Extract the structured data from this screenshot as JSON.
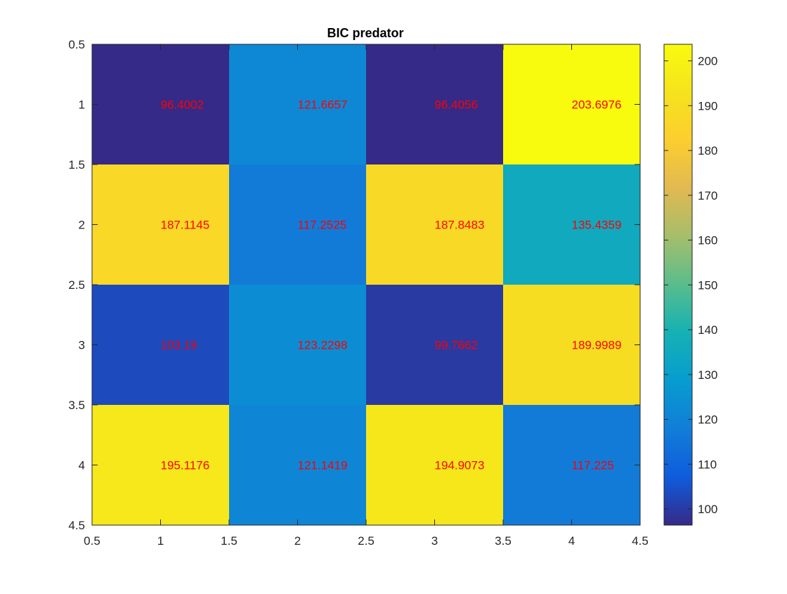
{
  "chart_data": {
    "type": "heatmap",
    "title": "BIC predator",
    "xlabel": "",
    "ylabel": "",
    "xlim": [
      0.5,
      4.5
    ],
    "ylim": [
      0.5,
      4.5
    ],
    "y_reversed": true,
    "x_ticks": [
      "0.5",
      "1",
      "1.5",
      "2",
      "2.5",
      "3",
      "3.5",
      "4",
      "4.5"
    ],
    "y_ticks": [
      "0.5",
      "1",
      "1.5",
      "2",
      "2.5",
      "3",
      "3.5",
      "4",
      "4.5"
    ],
    "rows": [
      1,
      2,
      3,
      4
    ],
    "cols": [
      1,
      2,
      3,
      4
    ],
    "values": [
      [
        96.4002,
        121.6657,
        96.4056,
        203.6976
      ],
      [
        187.1145,
        117.2525,
        187.8483,
        135.4359
      ],
      [
        103.19,
        123.2298,
        99.7662,
        189.9989
      ],
      [
        195.1176,
        121.1419,
        194.9073,
        117.225
      ]
    ],
    "labels": [
      [
        "96.4002",
        "121.6657",
        "96.4056",
        "203.6976"
      ],
      [
        "187.1145",
        "117.2525",
        "187.8483",
        "135.4359"
      ],
      [
        "103.19",
        "123.2298",
        "99.7662",
        "189.9989"
      ],
      [
        "195.1176",
        "121.1419",
        "194.9073",
        "117.225"
      ]
    ],
    "label_color": "#ff0000",
    "colormap": "parula",
    "colorbar": {
      "limits": [
        96.4002,
        203.6976
      ],
      "ticks": [
        "100",
        "110",
        "120",
        "130",
        "140",
        "150",
        "160",
        "170",
        "180",
        "190",
        "200"
      ],
      "location": "right"
    },
    "grid": false
  }
}
